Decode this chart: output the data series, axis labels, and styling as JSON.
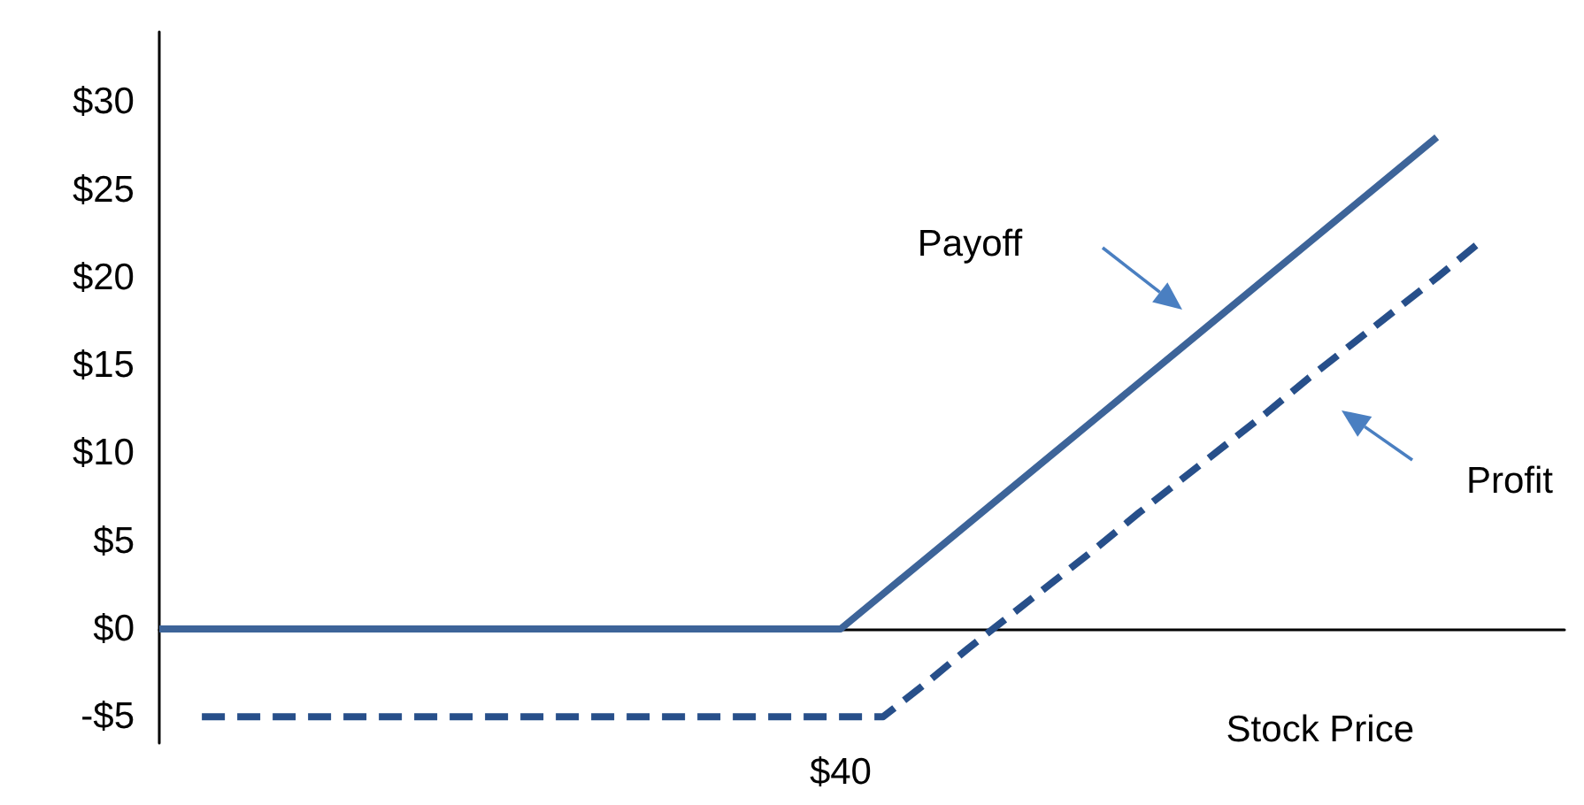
{
  "chart_data": {
    "type": "line",
    "xlabel": "Stock Price",
    "categories": [
      null,
      null,
      null,
      null,
      null,
      null,
      null,
      null,
      null,
      null,
      null,
      null,
      null,
      null,
      null,
      null,
      "$40",
      null,
      null,
      null,
      null,
      null,
      null,
      null,
      null,
      null,
      null,
      null,
      null,
      null,
      null,
      null,
      null,
      null
    ],
    "ylim": [
      -6.5,
      34
    ],
    "yticks": [
      {
        "value": -5,
        "label": "-$5"
      },
      {
        "value": 0,
        "label": "$0"
      },
      {
        "value": 5,
        "label": "$5"
      },
      {
        "value": 10,
        "label": "$10"
      },
      {
        "value": 15,
        "label": "$15"
      },
      {
        "value": 20,
        "label": "$20"
      },
      {
        "value": 25,
        "label": "$25"
      },
      {
        "value": 30,
        "label": "$30"
      }
    ],
    "series": [
      {
        "color": "#3d6499",
        "line_style": "solid",
        "values": [
          0,
          0,
          0,
          0,
          0,
          0,
          0,
          0,
          0,
          0,
          0,
          0,
          0,
          0,
          0,
          0,
          0,
          2,
          4,
          6,
          8,
          10,
          12,
          14,
          16,
          18,
          20,
          22,
          24,
          26,
          28,
          null,
          null,
          null
        ]
      },
      {
        "color": "#274f8a",
        "line_style": "dashed",
        "values": [
          null,
          -5,
          -5,
          -5,
          -5,
          -5,
          -5,
          -5,
          -5,
          -5,
          -5,
          -5,
          -5,
          -5,
          -5,
          -5,
          -5,
          -5,
          -3.1,
          -1.1,
          0.8,
          2.7,
          4.6,
          6.6,
          8.5,
          10.4,
          12.3,
          14.3,
          16.2,
          18.1,
          20,
          22,
          null,
          null
        ]
      }
    ],
    "annotations": [
      "Payoff",
      "Profit"
    ],
    "marker": "none"
  }
}
